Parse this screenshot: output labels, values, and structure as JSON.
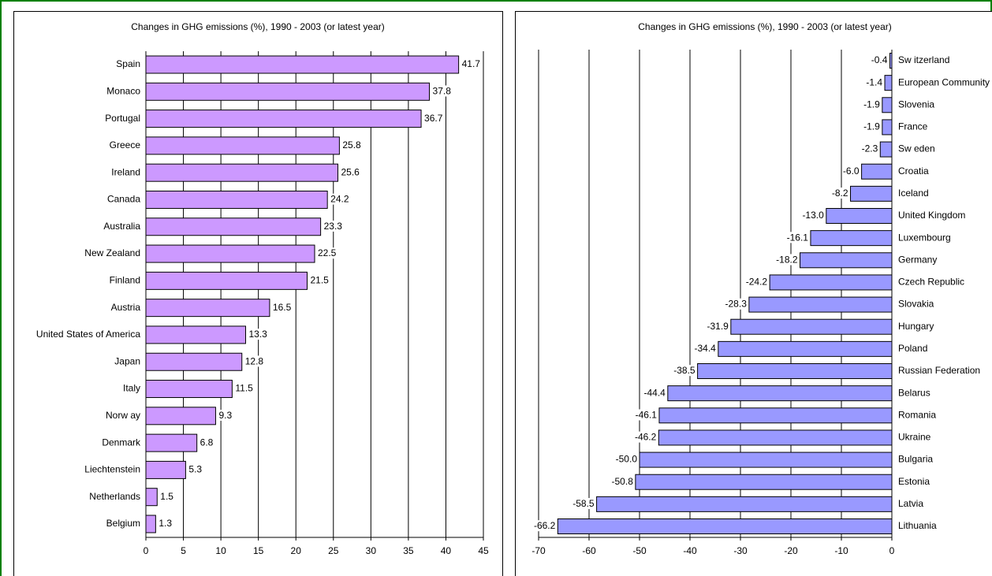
{
  "chart_data": [
    {
      "type": "bar",
      "orientation": "horizontal",
      "title": "Changes in GHG emissions (%), 1990 - 2003 (or latest year)",
      "categories": [
        "Spain",
        "Monaco",
        "Portugal",
        "Greece",
        "Ireland",
        "Canada",
        "Australia",
        "New Zealand",
        "Finland",
        "Austria",
        "United States of America",
        "Japan",
        "Italy",
        "Norw ay",
        "Denmark",
        "Liechtenstein",
        "Netherlands",
        "Belgium"
      ],
      "values": [
        41.7,
        37.8,
        36.7,
        25.8,
        25.6,
        24.2,
        23.3,
        22.5,
        21.5,
        16.5,
        13.3,
        12.8,
        11.5,
        9.3,
        6.8,
        5.3,
        1.5,
        1.3
      ],
      "color": "#cc99ff",
      "xlim": [
        0,
        45
      ],
      "xticks": [
        0,
        5,
        10,
        15,
        20,
        25,
        30,
        35,
        40,
        45
      ],
      "grid": true
    },
    {
      "type": "bar",
      "orientation": "horizontal",
      "title": "Changes in GHG emissions (%), 1990 - 2003 (or latest year)",
      "categories": [
        "Sw itzerland",
        "European Community",
        "Slovenia",
        "France",
        "Sw eden",
        "Croatia",
        "Iceland",
        "United Kingdom",
        "Luxembourg",
        "Germany",
        "Czech Republic",
        "Slovakia",
        "Hungary",
        "Poland",
        "Russian Federation",
        "Belarus",
        "Romania",
        "Ukraine",
        "Bulgaria",
        "Estonia",
        "Latvia",
        "Lithuania"
      ],
      "values": [
        -0.4,
        -1.4,
        -1.9,
        -1.9,
        -2.3,
        -6,
        -8.2,
        -13,
        -16.1,
        -18.2,
        -24.2,
        -28.3,
        -31.9,
        -34.4,
        -38.5,
        -44.4,
        -46.1,
        -46.2,
        -50,
        -50.8,
        -58.5,
        -66.2
      ],
      "value_labels": [
        "-0.4",
        "-1.4",
        "-1.9",
        "-1.9",
        "-2.3",
        "-6.0",
        "-8.2",
        "-13.0",
        "-16.1",
        "-18.2",
        "-24.2",
        "-28.3",
        "-31.9",
        "-34.4",
        "-38.5",
        "-44.4",
        "-46.1",
        "-46.2",
        "-50.0",
        "-50.8",
        "-58.5",
        "-66.2"
      ],
      "color": "#9999ff",
      "xlim": [
        -70,
        0
      ],
      "xticks": [
        -70,
        -60,
        -50,
        -40,
        -30,
        -20,
        -10,
        0
      ],
      "grid": true
    }
  ]
}
